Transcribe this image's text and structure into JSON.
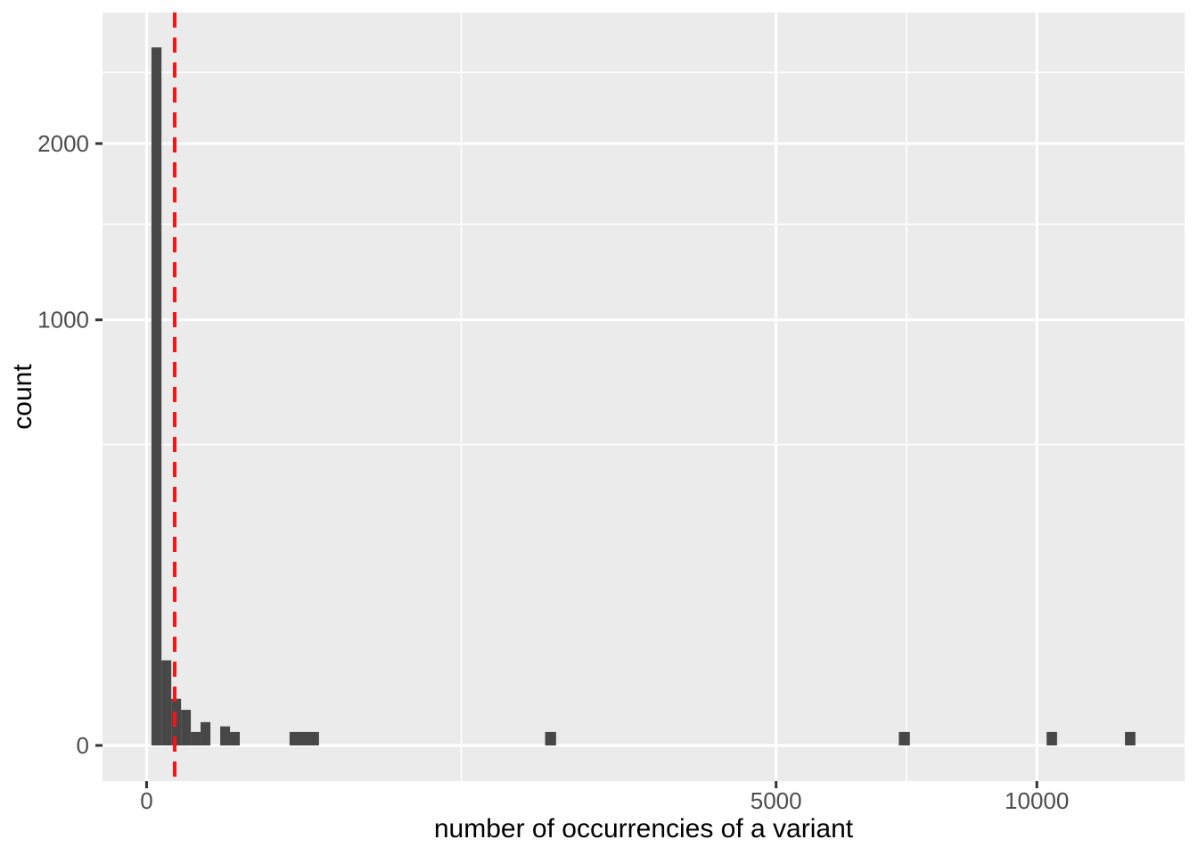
{
  "chart_data": {
    "type": "bar",
    "subtype": "histogram",
    "title": "",
    "xlabel": "number of occurrencies of a variant",
    "ylabel": "count",
    "x_scale": "sqrt",
    "y_scale": "sqrt",
    "grid": "on",
    "legend": "none",
    "x_ticks": [
      {
        "value": 0,
        "label": "0"
      },
      {
        "value": 5000,
        "label": "5000"
      },
      {
        "value": 10000,
        "label": "10000"
      }
    ],
    "y_ticks": [
      {
        "value": 0,
        "label": "0"
      },
      {
        "value": 1000,
        "label": "1000"
      },
      {
        "value": 2000,
        "label": "2000"
      }
    ],
    "x_minor_gridlines": [
      1250,
      7286
    ],
    "y_minor_gridlines": [
      500,
      1500,
      2500
    ],
    "x_domain_sqrt": [
      -4.95,
      116.6
    ],
    "y_domain_sqrt": [
      -2.65,
      54.46
    ],
    "bins": [
      {
        "from": 0.3,
        "to": 2.8,
        "count": 2690
      },
      {
        "from": 2.8,
        "to": 7.7,
        "count": 40
      },
      {
        "from": 7.7,
        "to": 15,
        "count": 12
      },
      {
        "from": 15,
        "to": 24.7,
        "count": 7
      },
      {
        "from": 24.7,
        "to": 36.8,
        "count": 1
      },
      {
        "from": 36.8,
        "to": 51.4,
        "count": 3
      },
      {
        "from": 68.4,
        "to": 87.8,
        "count": 2
      },
      {
        "from": 87.8,
        "to": 109.6,
        "count": 1
      },
      {
        "from": 258,
        "to": 375,
        "count": 1
      },
      {
        "from": 2004,
        "to": 2116,
        "count": 1
      },
      {
        "from": 7140,
        "to": 7351,
        "count": 1
      },
      {
        "from": 10221,
        "to": 10459,
        "count": 1
      },
      {
        "from": 12078,
        "to": 12337,
        "count": 1
      }
    ],
    "vline": {
      "x": 10,
      "style": "dashed",
      "color": "#FF1111"
    },
    "colors": {
      "bar": "#474747",
      "panel_background": "#EBEBEB",
      "gridline": "#FFFFFF",
      "axis_text": "#4D4D4D",
      "axis_title": "#000000",
      "tick_mark": "#333333",
      "page_background": "#FFFFFF"
    }
  }
}
